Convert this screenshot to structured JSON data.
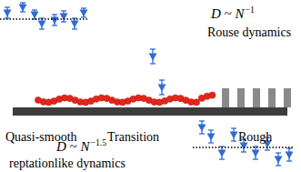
{
  "chart_data": {
    "type": "scatter",
    "tick_labels": false,
    "grid": false,
    "xlim": [
      0,
      331
    ],
    "ylim": [
      0,
      189
    ],
    "series": [
      {
        "color": "#2f6bd4",
        "marker": "triangle",
        "x": [
          8,
          25,
          38,
          46,
          60,
          70,
          82,
          92
        ],
        "values": [
          175,
          181,
          173,
          163,
          167,
          171,
          163,
          175
        ],
        "error": [
          6,
          5,
          5,
          6,
          6,
          6,
          6,
          5
        ]
      },
      {
        "color": "#2f6bd4",
        "marker": "triangle",
        "x": [
          168,
          178
        ],
        "values": [
          127,
          93
        ],
        "error": [
          8,
          8
        ]
      },
      {
        "color": "#2f6bd4",
        "marker": "triangle",
        "x": [
          222,
          232,
          244,
          257,
          268,
          281,
          294,
          306,
          318
        ],
        "values": [
          49,
          39,
          21,
          41,
          29,
          21,
          31,
          14,
          19
        ],
        "error": [
          7,
          7,
          7,
          7,
          7,
          7,
          7,
          7,
          7
        ]
      },
      {
        "type": "line",
        "line_style": "dotted",
        "color": "#000000",
        "x": [
          0,
          96
        ],
        "values": [
          168,
          168
        ]
      },
      {
        "type": "line",
        "line_style": "dotted",
        "color": "#000000",
        "x": [
          212,
          322
        ],
        "values": [
          27,
          27
        ]
      }
    ],
    "annotations": [
      {
        "text": "D ~ N",
        "sup": "−1"
      },
      {
        "text": "Rouse dynamics"
      },
      {
        "text": "Quasi-smooth"
      },
      {
        "text": "Transition"
      },
      {
        "text": "Rough"
      },
      {
        "text": "D ~ N",
        "sup": "−1.5"
      },
      {
        "text": "reptationlike dynamics"
      }
    ]
  }
}
